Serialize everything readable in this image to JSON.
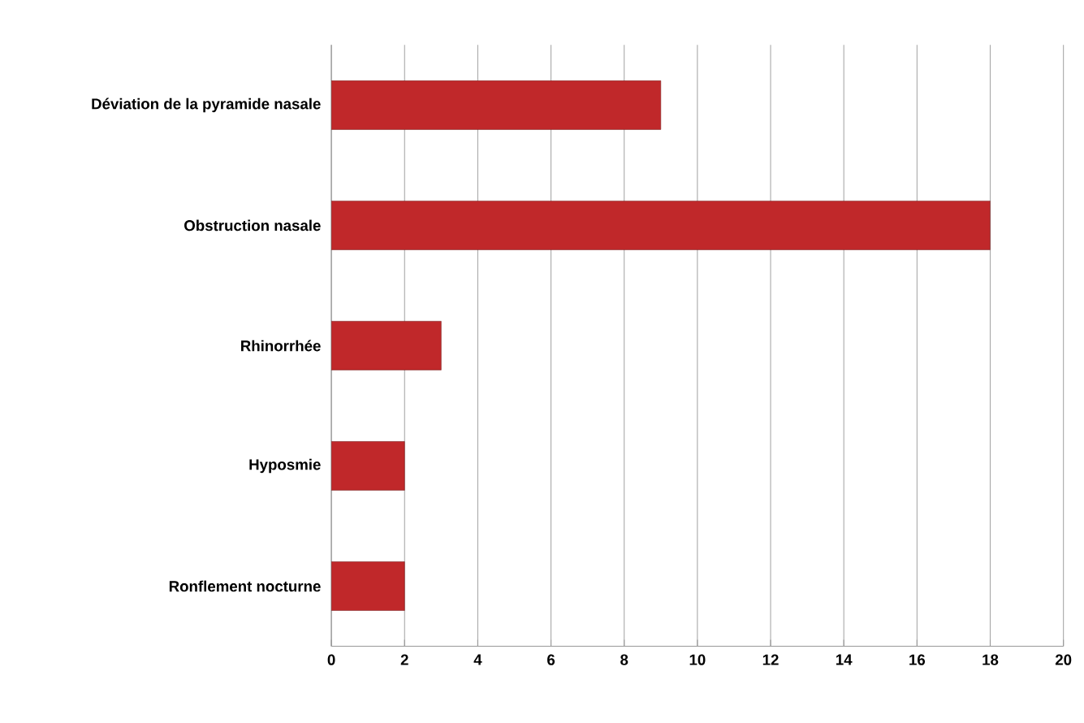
{
  "chart_data": {
    "type": "bar",
    "orientation": "horizontal",
    "categories": [
      "Déviation de la pyramide nasale",
      "Obstruction nasale",
      "Rhinorrhée",
      "Hyposmie",
      "Ronflement nocturne"
    ],
    "values": [
      9,
      18,
      3,
      2,
      2
    ],
    "color": "#c0282a",
    "xlim": [
      0,
      20
    ],
    "xticks": [
      0,
      2,
      4,
      6,
      8,
      10,
      12,
      14,
      16,
      18,
      20
    ],
    "grid": "x"
  }
}
